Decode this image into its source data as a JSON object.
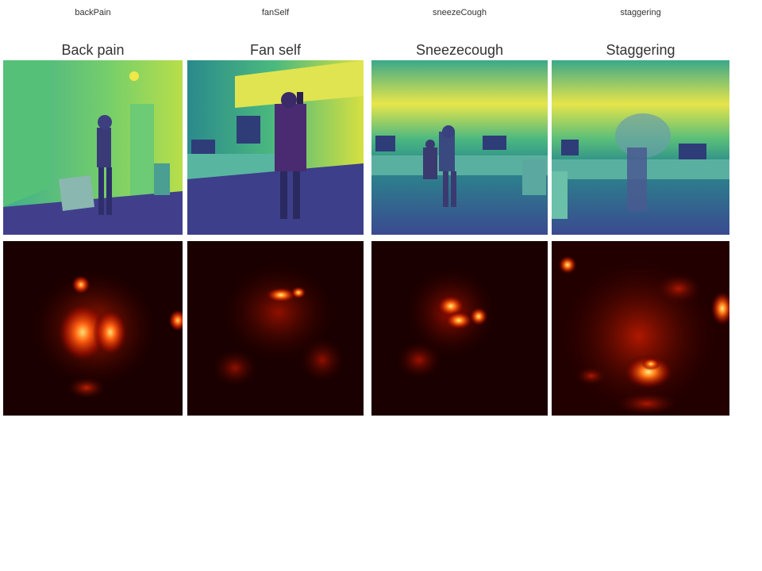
{
  "panels": [
    {
      "short_label": "backPain",
      "title": "Back pain"
    },
    {
      "short_label": "fanSelf",
      "title": "Fan self"
    },
    {
      "short_label": "sneezeCough",
      "title": "Sneezecough"
    },
    {
      "short_label": "staggering",
      "title": "Staggering"
    }
  ],
  "colors": {
    "frame_bright": "#e8e645",
    "frame_mid": "#3fb98a",
    "frame_teal": "#2a8a8c",
    "frame_dark": "#3d3f8a",
    "heat_bg": "#1a0000",
    "heat_mid": "#a01000",
    "heat_hot": "#ffe060"
  }
}
